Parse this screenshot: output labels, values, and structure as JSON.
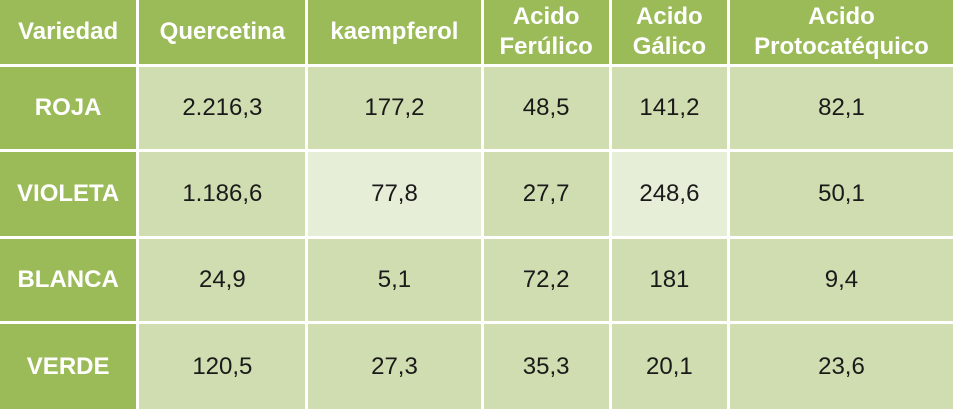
{
  "table": {
    "columns": [
      "Variedad",
      "Quercetina",
      "kaempferol",
      "Acido Ferúlico",
      "Acido Gálico",
      "Acido Protocatéquico"
    ],
    "rows": [
      {
        "label": "ROJA",
        "values": [
          "2.216,3",
          "177,2",
          "48,5",
          "141,2",
          "82,1"
        ]
      },
      {
        "label": "VIOLETA",
        "values": [
          "1.186,6",
          "77,8",
          "27,7",
          "248,6",
          "50,1"
        ]
      },
      {
        "label": "BLANCA",
        "values": [
          "24,9",
          "5,1",
          "72,2",
          "181",
          "9,4"
        ]
      },
      {
        "label": "VERDE",
        "values": [
          "120,5",
          "27,3",
          "35,3",
          "20,1",
          "23,6"
        ]
      }
    ]
  },
  "colors": {
    "header_green": "#9bbb59",
    "cell_dark": "#cfddb0",
    "cell_light": "#e7eed8"
  }
}
